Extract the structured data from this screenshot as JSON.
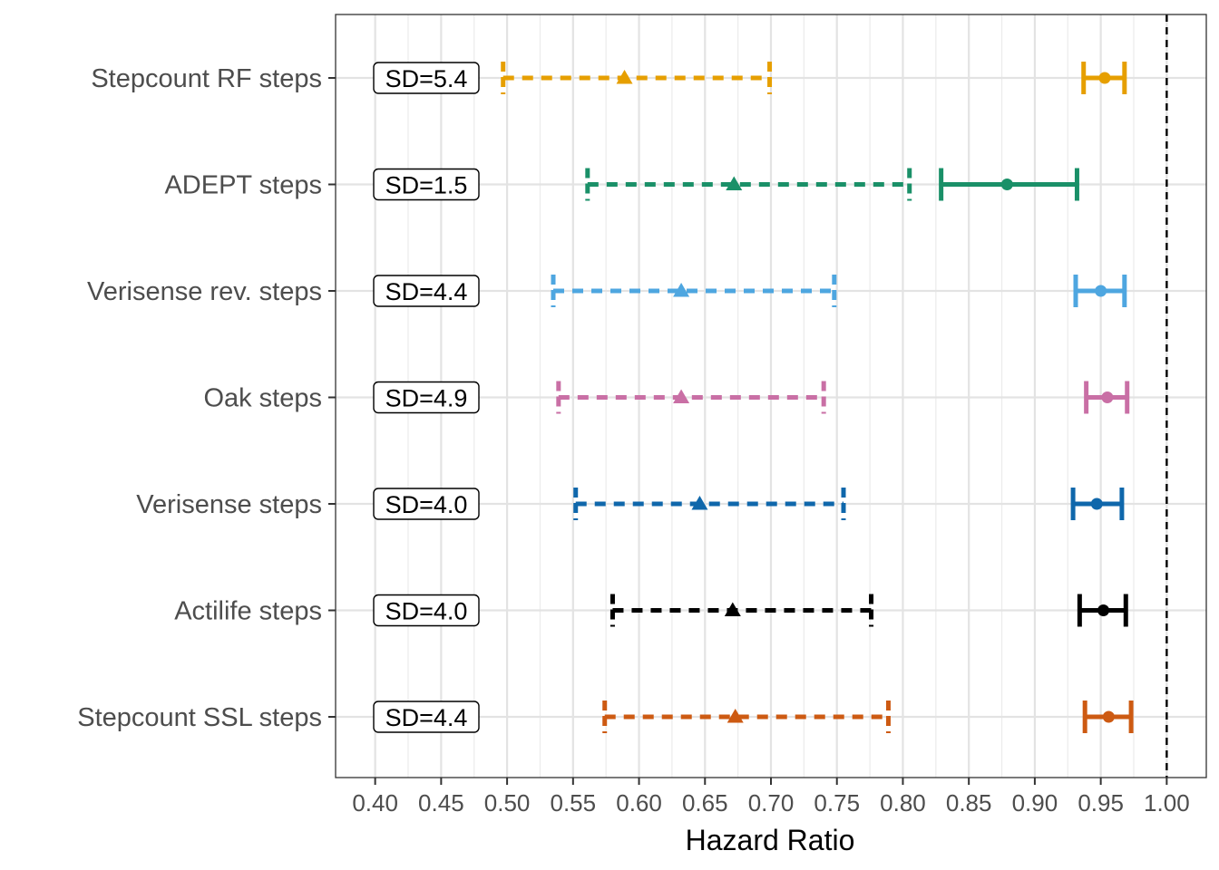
{
  "chart_data": {
    "type": "forest",
    "title": "",
    "xlabel": "Hazard Ratio",
    "ylabel": "",
    "xlim": [
      0.37,
      1.03
    ],
    "x_ticks": [
      0.4,
      0.45,
      0.5,
      0.55,
      0.6,
      0.65,
      0.7,
      0.75,
      0.8,
      0.85,
      0.9,
      0.95,
      1.0
    ],
    "x_tick_labels": [
      "0.40",
      "0.45",
      "0.50",
      "0.55",
      "0.60",
      "0.65",
      "0.70",
      "0.75",
      "0.80",
      "0.85",
      "0.90",
      "0.95",
      "1.00"
    ],
    "reference_line": 1.0,
    "grid": true,
    "rows": [
      {
        "label": "Stepcount RF steps",
        "sd_label": "SD=5.4",
        "color": "#E69F00",
        "per_sd": {
          "hr": 0.589,
          "lo": 0.497,
          "hi": 0.699
        },
        "per_1000": {
          "hr": 0.953,
          "lo": 0.937,
          "hi": 0.968
        }
      },
      {
        "label": "ADEPT steps",
        "sd_label": "SD=1.5",
        "color": "#1A9068",
        "per_sd": {
          "hr": 0.672,
          "lo": 0.561,
          "hi": 0.805
        },
        "per_1000": {
          "hr": 0.879,
          "lo": 0.829,
          "hi": 0.932
        }
      },
      {
        "label": "Verisense rev. steps",
        "sd_label": "SD=4.4",
        "color": "#4EA6E0",
        "per_sd": {
          "hr": 0.632,
          "lo": 0.535,
          "hi": 0.748
        },
        "per_1000": {
          "hr": 0.95,
          "lo": 0.931,
          "hi": 0.968
        }
      },
      {
        "label": "Oak steps",
        "sd_label": "SD=4.9",
        "color": "#C96FA5",
        "per_sd": {
          "hr": 0.632,
          "lo": 0.539,
          "hi": 0.74
        },
        "per_1000": {
          "hr": 0.955,
          "lo": 0.939,
          "hi": 0.97
        }
      },
      {
        "label": "Verisense steps",
        "sd_label": "SD=4.0",
        "color": "#0F67AB",
        "per_sd": {
          "hr": 0.646,
          "lo": 0.552,
          "hi": 0.755
        },
        "per_1000": {
          "hr": 0.947,
          "lo": 0.929,
          "hi": 0.966
        }
      },
      {
        "label": "Actilife steps",
        "sd_label": "SD=4.0",
        "color": "#000000",
        "per_sd": {
          "hr": 0.671,
          "lo": 0.58,
          "hi": 0.776
        },
        "per_1000": {
          "hr": 0.952,
          "lo": 0.934,
          "hi": 0.969
        }
      },
      {
        "label": "Stepcount SSL steps",
        "sd_label": "SD=4.4",
        "color": "#CD5A12",
        "per_sd": {
          "hr": 0.673,
          "lo": 0.574,
          "hi": 0.789
        },
        "per_1000": {
          "hr": 0.956,
          "lo": 0.938,
          "hi": 0.973
        }
      }
    ]
  }
}
